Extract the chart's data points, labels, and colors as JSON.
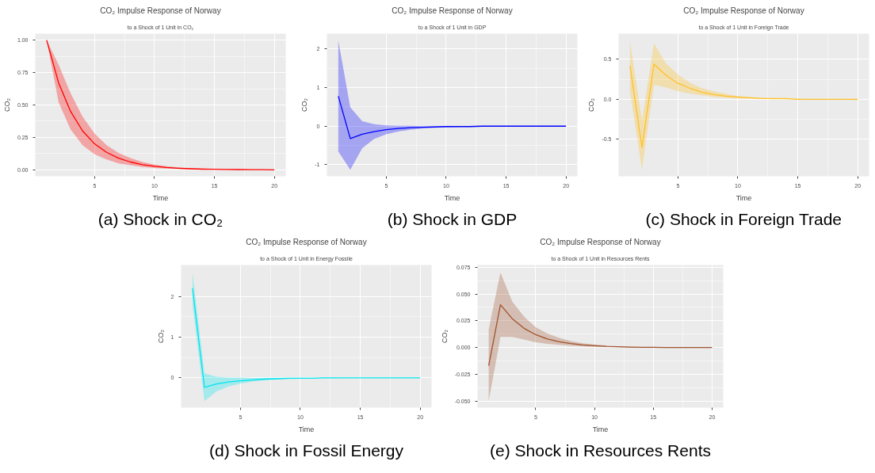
{
  "chart_data": [
    {
      "type": "line",
      "title": "CO₂ Impulse Response of Norway",
      "subtitle": "to a Shock of 1 Unit in CO₂",
      "xlabel": "Time",
      "ylabel": "CO₂",
      "annotations": [
        "(a) Shock in CO₂"
      ],
      "x": [
        1,
        2,
        3,
        4,
        5,
        6,
        7,
        8,
        9,
        10,
        11,
        12,
        13,
        14,
        15,
        16,
        17,
        18,
        19,
        20
      ],
      "xlim": [
        0.05,
        20.95
      ],
      "xticks": [
        5,
        10,
        15,
        20
      ],
      "ylim": [
        -0.05,
        1.05
      ],
      "yticks": [
        {
          "value": 0,
          "label": "0.00"
        },
        {
          "value": 0.25,
          "label": "0.25"
        },
        {
          "value": 0.5,
          "label": "0.50"
        },
        {
          "value": 0.75,
          "label": "0.75"
        },
        {
          "value": 1,
          "label": "1.00"
        }
      ],
      "grid": true,
      "series": [
        {
          "color": "#ff0000",
          "values": [
            1.0,
            0.67,
            0.45,
            0.3,
            0.2,
            0.135,
            0.09,
            0.06,
            0.04,
            0.027,
            0.018,
            0.012,
            0.008,
            0.005,
            0.004,
            0.003,
            0.002,
            0.001,
            0.001,
            0.0
          ],
          "lower": [
            1.0,
            0.52,
            0.31,
            0.19,
            0.12,
            0.08,
            0.05,
            0.035,
            0.022,
            0.014,
            0.009,
            0.006,
            0.004,
            0.003,
            0.002,
            0.001,
            0.001,
            0.0,
            0.0,
            0.0
          ],
          "upper": [
            1.0,
            0.81,
            0.59,
            0.41,
            0.28,
            0.19,
            0.13,
            0.09,
            0.06,
            0.04,
            0.028,
            0.019,
            0.013,
            0.009,
            0.006,
            0.004,
            0.003,
            0.002,
            0.001,
            0.0
          ]
        }
      ]
    },
    {
      "type": "line",
      "title": "CO₂ Impulse Response of Norway",
      "subtitle": "to a Shock of 1 Unit in GDP",
      "xlabel": "Time",
      "ylabel": "CO₂",
      "annotations": [
        "(b) Shock in GDP"
      ],
      "x": [
        1,
        2,
        3,
        4,
        5,
        6,
        7,
        8,
        9,
        10,
        11,
        12,
        13,
        14,
        15,
        16,
        17,
        18,
        19,
        20
      ],
      "xlim": [
        0.05,
        20.95
      ],
      "xticks": [
        5,
        10,
        15,
        20
      ],
      "ylim": [
        -1.3,
        2.4
      ],
      "yticks": [
        -1,
        0,
        1,
        2
      ],
      "grid": true,
      "series": [
        {
          "color": "#0000ff",
          "values": [
            0.78,
            -0.32,
            -0.21,
            -0.14,
            -0.09,
            -0.06,
            -0.04,
            -0.03,
            -0.02,
            -0.01,
            -0.01,
            -0.01,
            0.0,
            0.0,
            0.0,
            0.0,
            0.0,
            0.0,
            0.0,
            0.0
          ],
          "lower": [
            -0.66,
            -1.13,
            -0.57,
            -0.33,
            -0.21,
            -0.14,
            -0.09,
            -0.06,
            -0.04,
            -0.03,
            -0.02,
            -0.01,
            -0.01,
            -0.01,
            0.0,
            0.0,
            0.0,
            0.0,
            0.0,
            0.0
          ],
          "upper": [
            2.22,
            0.49,
            0.13,
            0.05,
            0.02,
            0.01,
            0.01,
            0.0,
            0.0,
            0.0,
            0.0,
            0.0,
            0.0,
            0.0,
            0.0,
            0.0,
            0.0,
            0.0,
            0.0,
            0.0
          ]
        }
      ]
    },
    {
      "type": "line",
      "title": "CO₂ Impulse Response of Norway",
      "subtitle": "to a Shock of 1 Unit in Foreign Trade",
      "xlabel": "Time",
      "ylabel": "CO₂",
      "annotations": [
        "(c) Shock in Foreign Trade"
      ],
      "x": [
        1,
        2,
        3,
        4,
        5,
        6,
        7,
        8,
        9,
        10,
        11,
        12,
        13,
        14,
        15,
        16,
        17,
        18,
        19,
        20
      ],
      "xlim": [
        0.05,
        20.95
      ],
      "xticks": [
        5,
        10,
        15,
        20
      ],
      "ylim": [
        -0.96,
        0.82
      ],
      "yticks": [
        -0.5,
        {
          "value": 0,
          "label": "0.0"
        },
        0.5
      ],
      "grid": true,
      "series": [
        {
          "color": "#ffc125",
          "values": [
            0.42,
            -0.6,
            0.44,
            0.3,
            0.2,
            0.14,
            0.09,
            0.06,
            0.04,
            0.03,
            0.02,
            0.01,
            0.01,
            0.01,
            0.0,
            0.0,
            0.0,
            0.0,
            0.0,
            0.0
          ],
          "lower": [
            0.1,
            -0.88,
            0.18,
            0.15,
            0.1,
            0.07,
            0.05,
            0.03,
            0.02,
            0.01,
            0.01,
            0.01,
            0.0,
            0.0,
            0.0,
            0.0,
            0.0,
            0.0,
            0.0,
            -0.01
          ],
          "upper": [
            0.73,
            -0.26,
            0.7,
            0.45,
            0.31,
            0.21,
            0.14,
            0.1,
            0.07,
            0.04,
            0.03,
            0.02,
            0.01,
            0.01,
            0.01,
            0.0,
            0.0,
            0.0,
            0.0,
            0.01
          ]
        }
      ]
    },
    {
      "type": "line",
      "title": "CO₂ Impulse Response of Norway",
      "subtitle": "to a Shock of 1 Unit in Energy Fossile",
      "xlabel": "Time",
      "ylabel": "CO₂",
      "annotations": [
        "(d) Shock in Fossil Energy"
      ],
      "x": [
        1,
        2,
        3,
        4,
        5,
        6,
        7,
        8,
        9,
        10,
        11,
        12,
        13,
        14,
        15,
        16,
        17,
        18,
        19,
        20
      ],
      "xlim": [
        0.05,
        20.95
      ],
      "xticks": [
        5,
        10,
        15,
        20
      ],
      "ylim": [
        -0.73,
        2.77
      ],
      "yticks": [
        0,
        1,
        2
      ],
      "grid": true,
      "series": [
        {
          "color": "#00e5ee",
          "values": [
            2.2,
            -0.23,
            -0.15,
            -0.1,
            -0.07,
            -0.05,
            -0.03,
            -0.02,
            -0.01,
            -0.01,
            -0.01,
            0.0,
            0.0,
            0.0,
            0.0,
            0.0,
            0.0,
            0.0,
            0.0,
            0.0
          ],
          "lower": [
            1.8,
            -0.57,
            -0.33,
            -0.21,
            -0.14,
            -0.09,
            -0.06,
            -0.04,
            -0.03,
            -0.02,
            -0.01,
            -0.01,
            -0.01,
            0.0,
            0.0,
            0.0,
            0.0,
            0.0,
            0.0,
            0.0
          ],
          "upper": [
            2.58,
            0.11,
            0.03,
            0.01,
            0.01,
            0.0,
            0.0,
            0.0,
            0.0,
            0.0,
            0.0,
            0.0,
            0.0,
            0.0,
            0.0,
            0.0,
            0.0,
            0.0,
            0.0,
            0.0
          ]
        }
      ]
    },
    {
      "type": "line",
      "title": "CO₂ Impulse Response of Norway",
      "subtitle": "to a Shock of 1 Unit in Resources Rents",
      "xlabel": "Time",
      "ylabel": "CO₂",
      "annotations": [
        "(e) Shock in Resources Rents"
      ],
      "x": [
        1,
        2,
        3,
        4,
        5,
        6,
        7,
        8,
        9,
        10,
        11,
        12,
        13,
        14,
        15,
        16,
        17,
        18,
        19,
        20
      ],
      "xlim": [
        0.05,
        20.95
      ],
      "xticks": [
        5,
        10,
        15,
        20
      ],
      "ylim": [
        -0.056,
        0.077
      ],
      "yticks": [
        {
          "value": -0.05,
          "label": "-0.050"
        },
        {
          "value": -0.025,
          "label": "-0.025"
        },
        {
          "value": 0,
          "label": "0.000"
        },
        {
          "value": 0.025,
          "label": "0.025"
        },
        {
          "value": 0.05,
          "label": "0.050"
        },
        {
          "value": 0.075,
          "label": "0.075"
        }
      ],
      "grid": true,
      "series": [
        {
          "color": "#a0522d",
          "values": [
            -0.017,
            0.04,
            0.027,
            0.018,
            0.012,
            0.008,
            0.0055,
            0.0037,
            0.0025,
            0.0017,
            0.0011,
            0.0008,
            0.0005,
            0.0003,
            0.0002,
            0.0001,
            0.0001,
            0.0,
            0.0,
            0.0
          ],
          "lower": [
            -0.05,
            0.01,
            0.01,
            0.0075,
            0.005,
            0.0035,
            0.0025,
            0.0017,
            0.0011,
            0.0008,
            0.0005,
            0.0003,
            0.0002,
            0.0001,
            0.0001,
            0.0,
            0.0,
            0.0,
            0.0,
            0.0
          ],
          "upper": [
            0.017,
            0.07,
            0.043,
            0.029,
            0.019,
            0.013,
            0.009,
            0.006,
            0.004,
            0.003,
            0.002,
            0.0013,
            0.0009,
            0.0006,
            0.0004,
            0.0003,
            0.0002,
            0.0001,
            0.0,
            0.0
          ]
        }
      ]
    }
  ]
}
